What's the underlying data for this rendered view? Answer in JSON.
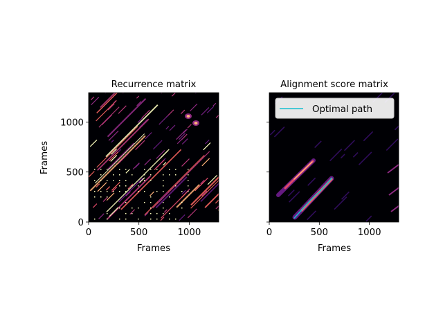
{
  "chart_data": [
    {
      "type": "heatmap",
      "title": "Recurrence matrix",
      "xlabel": "Frames",
      "ylabel": "Frames",
      "xlim": [
        0,
        1293
      ],
      "ylim": [
        0,
        1293
      ],
      "xticks": [
        0,
        500,
        1000
      ],
      "yticks": [
        0,
        500,
        1000
      ],
      "colormap": "magma",
      "background": "#000004",
      "legend": null
    },
    {
      "type": "heatmap",
      "title": "Alignment score matrix",
      "xlabel": "Frames",
      "ylabel": "",
      "xlim": [
        0,
        1293
      ],
      "ylim": [
        0,
        1293
      ],
      "xticks": [
        0,
        500,
        1000
      ],
      "yticks": [
        0,
        500,
        1000
      ],
      "colormap": "magma",
      "background": "#000004",
      "legend": {
        "position": "upper right",
        "entries": [
          "Optimal path"
        ]
      },
      "series": [
        {
          "name": "Optimal path",
          "color": "#17becf",
          "x": [
            250,
            300,
            350,
            400,
            450,
            500,
            550,
            600,
            625
          ],
          "y": [
            40,
            95,
            150,
            205,
            255,
            300,
            355,
            410,
            440
          ]
        }
      ]
    }
  ]
}
